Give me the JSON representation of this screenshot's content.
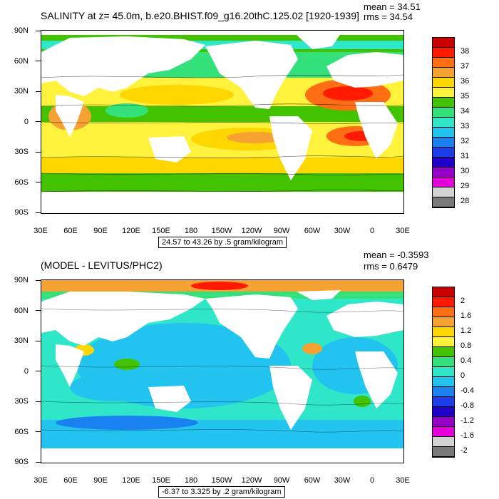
{
  "top": {
    "title": "SALINITY at z=  45.0m, b.e20.BHIST.f09_g16.20thC.125.02 [1920-1939]",
    "mean": "mean = 34.51",
    "rms": "rms = 34.54",
    "info": "24.57 to 43.26 by .5 gram/kilogram",
    "colorbar_labels": [
      "38",
      "37",
      "36",
      "35",
      "34",
      "33",
      "32",
      "31",
      "30",
      "29",
      "28"
    ],
    "colorbar_colors": [
      "#c80000",
      "#ff1a00",
      "#ff6e12",
      "#f5a233",
      "#ffd700",
      "#fff23c",
      "#43c300",
      "#34e07a",
      "#2fe6c8",
      "#22c3ef",
      "#1a82f0",
      "#1c3ee8",
      "#1e00c8",
      "#9600c8",
      "#e600dc",
      "#d2d2d2",
      "#787878"
    ]
  },
  "bottom": {
    "title": "(MODEL - LEVITUS/PHC2)",
    "mean": "mean = -0.3593",
    "rms": "rms = 0.6479",
    "info": "-6.37 to 3.325 by .2 gram/kilogram",
    "colorbar_labels": [
      "2",
      "1.6",
      "1.2",
      "0.8",
      "0.4",
      "0",
      "-0.4",
      "-0.8",
      "-1.2",
      "-1.6",
      "-2"
    ],
    "colorbar_colors": [
      "#c80000",
      "#ff1a00",
      "#ff6e12",
      "#f5a233",
      "#ffd700",
      "#fff23c",
      "#43c300",
      "#34e07a",
      "#2fe6c8",
      "#22c3ef",
      "#1a82f0",
      "#1c3ee8",
      "#1e00c8",
      "#9600c8",
      "#e600dc",
      "#d2d2d2",
      "#787878"
    ]
  },
  "lat_labels": [
    "90N",
    "60N",
    "30N",
    "0",
    "30S",
    "60S",
    "90S"
  ],
  "lon_labels": [
    "30E",
    "60E",
    "90E",
    "120E",
    "150E",
    "180",
    "150W",
    "120W",
    "90W",
    "60W",
    "30W",
    "0",
    "30E"
  ]
}
